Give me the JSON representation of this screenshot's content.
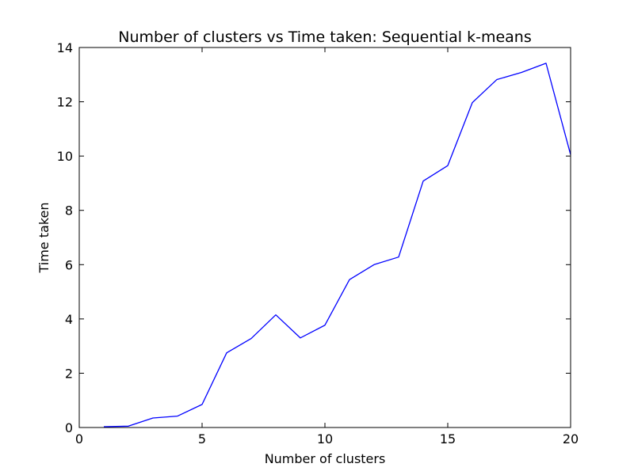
{
  "chart_data": {
    "type": "line",
    "title": "Number of clusters vs Time taken: Sequential k-means",
    "xlabel": "Number of clusters",
    "ylabel": "Time taken",
    "xlim": [
      0,
      20
    ],
    "ylim": [
      0,
      14
    ],
    "xticks": [
      "0",
      "5",
      "10",
      "15",
      "20"
    ],
    "yticks": [
      "0",
      "2",
      "4",
      "6",
      "8",
      "10",
      "12",
      "14"
    ],
    "grid": false,
    "series": [
      {
        "color": "#0000ff",
        "x": [
          1,
          2,
          3,
          4,
          5,
          6,
          7,
          8,
          9,
          10,
          11,
          12,
          13,
          14,
          15,
          16,
          17,
          18,
          19,
          20
        ],
        "y": [
          0.03,
          0.05,
          0.35,
          0.42,
          0.85,
          2.75,
          3.28,
          4.15,
          3.3,
          3.77,
          5.45,
          6.0,
          6.28,
          9.08,
          9.65,
          11.97,
          12.82,
          13.08,
          13.42,
          10.05
        ]
      }
    ]
  }
}
